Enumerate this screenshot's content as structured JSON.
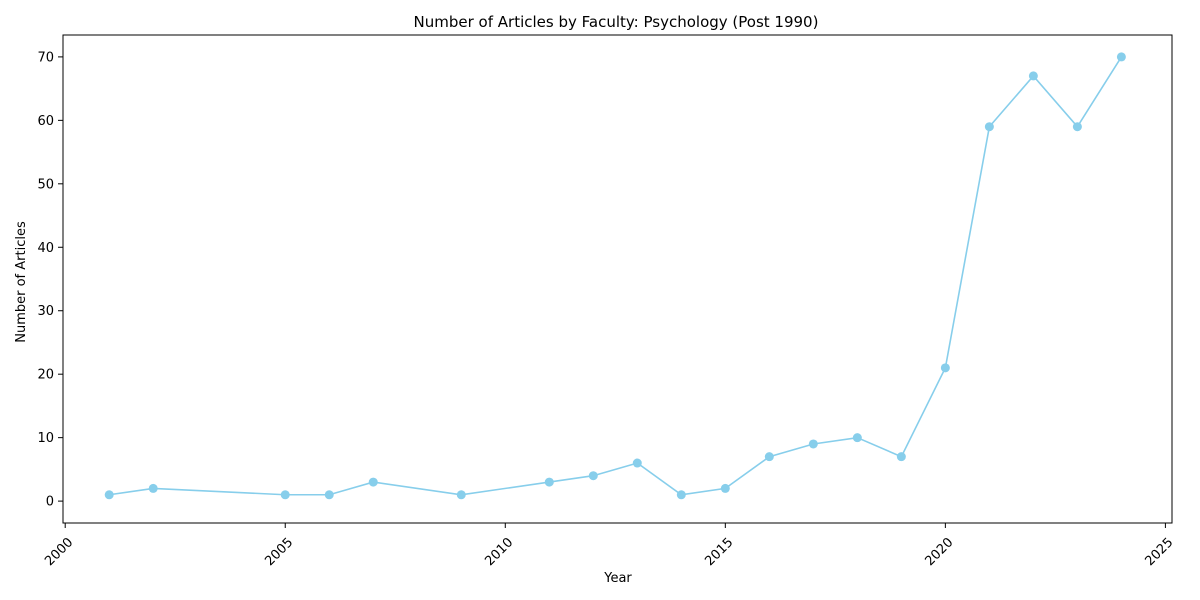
{
  "chart_data": {
    "type": "line",
    "title": "Number of Articles by Faculty: Psychology (Post 1990)",
    "xlabel": "Year",
    "ylabel": "Number of Articles",
    "xlim": [
      1999.95,
      2025.15
    ],
    "ylim": [
      -3.45,
      73.45
    ],
    "xticks": [
      2000,
      2005,
      2010,
      2015,
      2020,
      2025
    ],
    "xtick_labels": [
      "2000",
      "2005",
      "2010",
      "2015",
      "2020",
      "2025"
    ],
    "yticks": [
      0,
      10,
      20,
      30,
      40,
      50,
      60,
      70
    ],
    "ytick_labels": [
      "0",
      "10",
      "20",
      "30",
      "40",
      "50",
      "60",
      "70"
    ],
    "grid": false,
    "series": [
      {
        "name": "Psychology",
        "color": "#87ceeb",
        "x": [
          2001,
          2002,
          2005,
          2006,
          2007,
          2009,
          2011,
          2012,
          2013,
          2014,
          2015,
          2016,
          2017,
          2018,
          2019,
          2020,
          2021,
          2022,
          2023,
          2024
        ],
        "y": [
          1,
          2,
          1,
          1,
          3,
          1,
          3,
          4,
          6,
          1,
          2,
          7,
          9,
          10,
          7,
          21,
          59,
          67,
          59,
          70
        ]
      }
    ]
  }
}
